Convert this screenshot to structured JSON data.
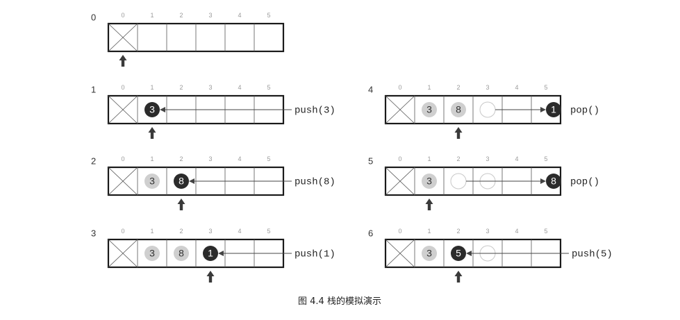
{
  "figure": {
    "caption": "图 4.4   栈的模拟演示",
    "index_labels": [
      "0",
      "1",
      "2",
      "3",
      "4",
      "5"
    ],
    "steps": [
      {
        "id": "0",
        "operation": "",
        "top_index": 0,
        "slots": [
          {
            "index": 1,
            "kind": "empty"
          },
          {
            "index": 2,
            "kind": "empty"
          },
          {
            "index": 3,
            "kind": "empty"
          },
          {
            "index": 4,
            "kind": "empty"
          },
          {
            "index": 5,
            "kind": "empty"
          }
        ],
        "moving": null
      },
      {
        "id": "1",
        "operation": "push(3)",
        "top_index": 1,
        "slots": [
          {
            "index": 1,
            "kind": "dark",
            "value": "3"
          }
        ],
        "moving": {
          "direction": "in",
          "value": "3",
          "to_index": 1
        }
      },
      {
        "id": "2",
        "operation": "push(8)",
        "top_index": 2,
        "slots": [
          {
            "index": 1,
            "kind": "gray",
            "value": "3"
          },
          {
            "index": 2,
            "kind": "dark",
            "value": "8"
          }
        ],
        "moving": {
          "direction": "in",
          "value": "8",
          "to_index": 2
        }
      },
      {
        "id": "3",
        "operation": "push(1)",
        "top_index": 3,
        "slots": [
          {
            "index": 1,
            "kind": "gray",
            "value": "3"
          },
          {
            "index": 2,
            "kind": "gray",
            "value": "8"
          },
          {
            "index": 3,
            "kind": "dark",
            "value": "1"
          }
        ],
        "moving": {
          "direction": "in",
          "value": "1",
          "to_index": 3
        }
      },
      {
        "id": "4",
        "operation": "pop()",
        "top_index": 2,
        "slots": [
          {
            "index": 1,
            "kind": "gray",
            "value": "3"
          },
          {
            "index": 2,
            "kind": "gray",
            "value": "8"
          },
          {
            "index": 3,
            "kind": "ghost"
          }
        ],
        "moving": {
          "direction": "out",
          "value": "1",
          "from_index": 3
        }
      },
      {
        "id": "5",
        "operation": "pop()",
        "top_index": 1,
        "slots": [
          {
            "index": 1,
            "kind": "gray",
            "value": "3"
          },
          {
            "index": 2,
            "kind": "ghost"
          },
          {
            "index": 3,
            "kind": "ghost"
          }
        ],
        "moving": {
          "direction": "out",
          "value": "8",
          "from_index": 2
        }
      },
      {
        "id": "6",
        "operation": "push(5)",
        "top_index": 2,
        "slots": [
          {
            "index": 1,
            "kind": "gray",
            "value": "3"
          },
          {
            "index": 2,
            "kind": "dark",
            "value": "5"
          },
          {
            "index": 3,
            "kind": "ghost"
          }
        ],
        "moving": {
          "direction": "in",
          "value": "5",
          "to_index": 2
        }
      }
    ]
  },
  "colors": {
    "frame": "#1a1a1a",
    "grid": "#555555",
    "dark_ball": "#2b2b2b",
    "dark_text": "#ffffff",
    "gray_ball": "#cfcfcf",
    "gray_text": "#333333",
    "ghost_stroke": "#c8c8c8",
    "arrow": "#444444",
    "pointer": "#3a3a3a"
  }
}
